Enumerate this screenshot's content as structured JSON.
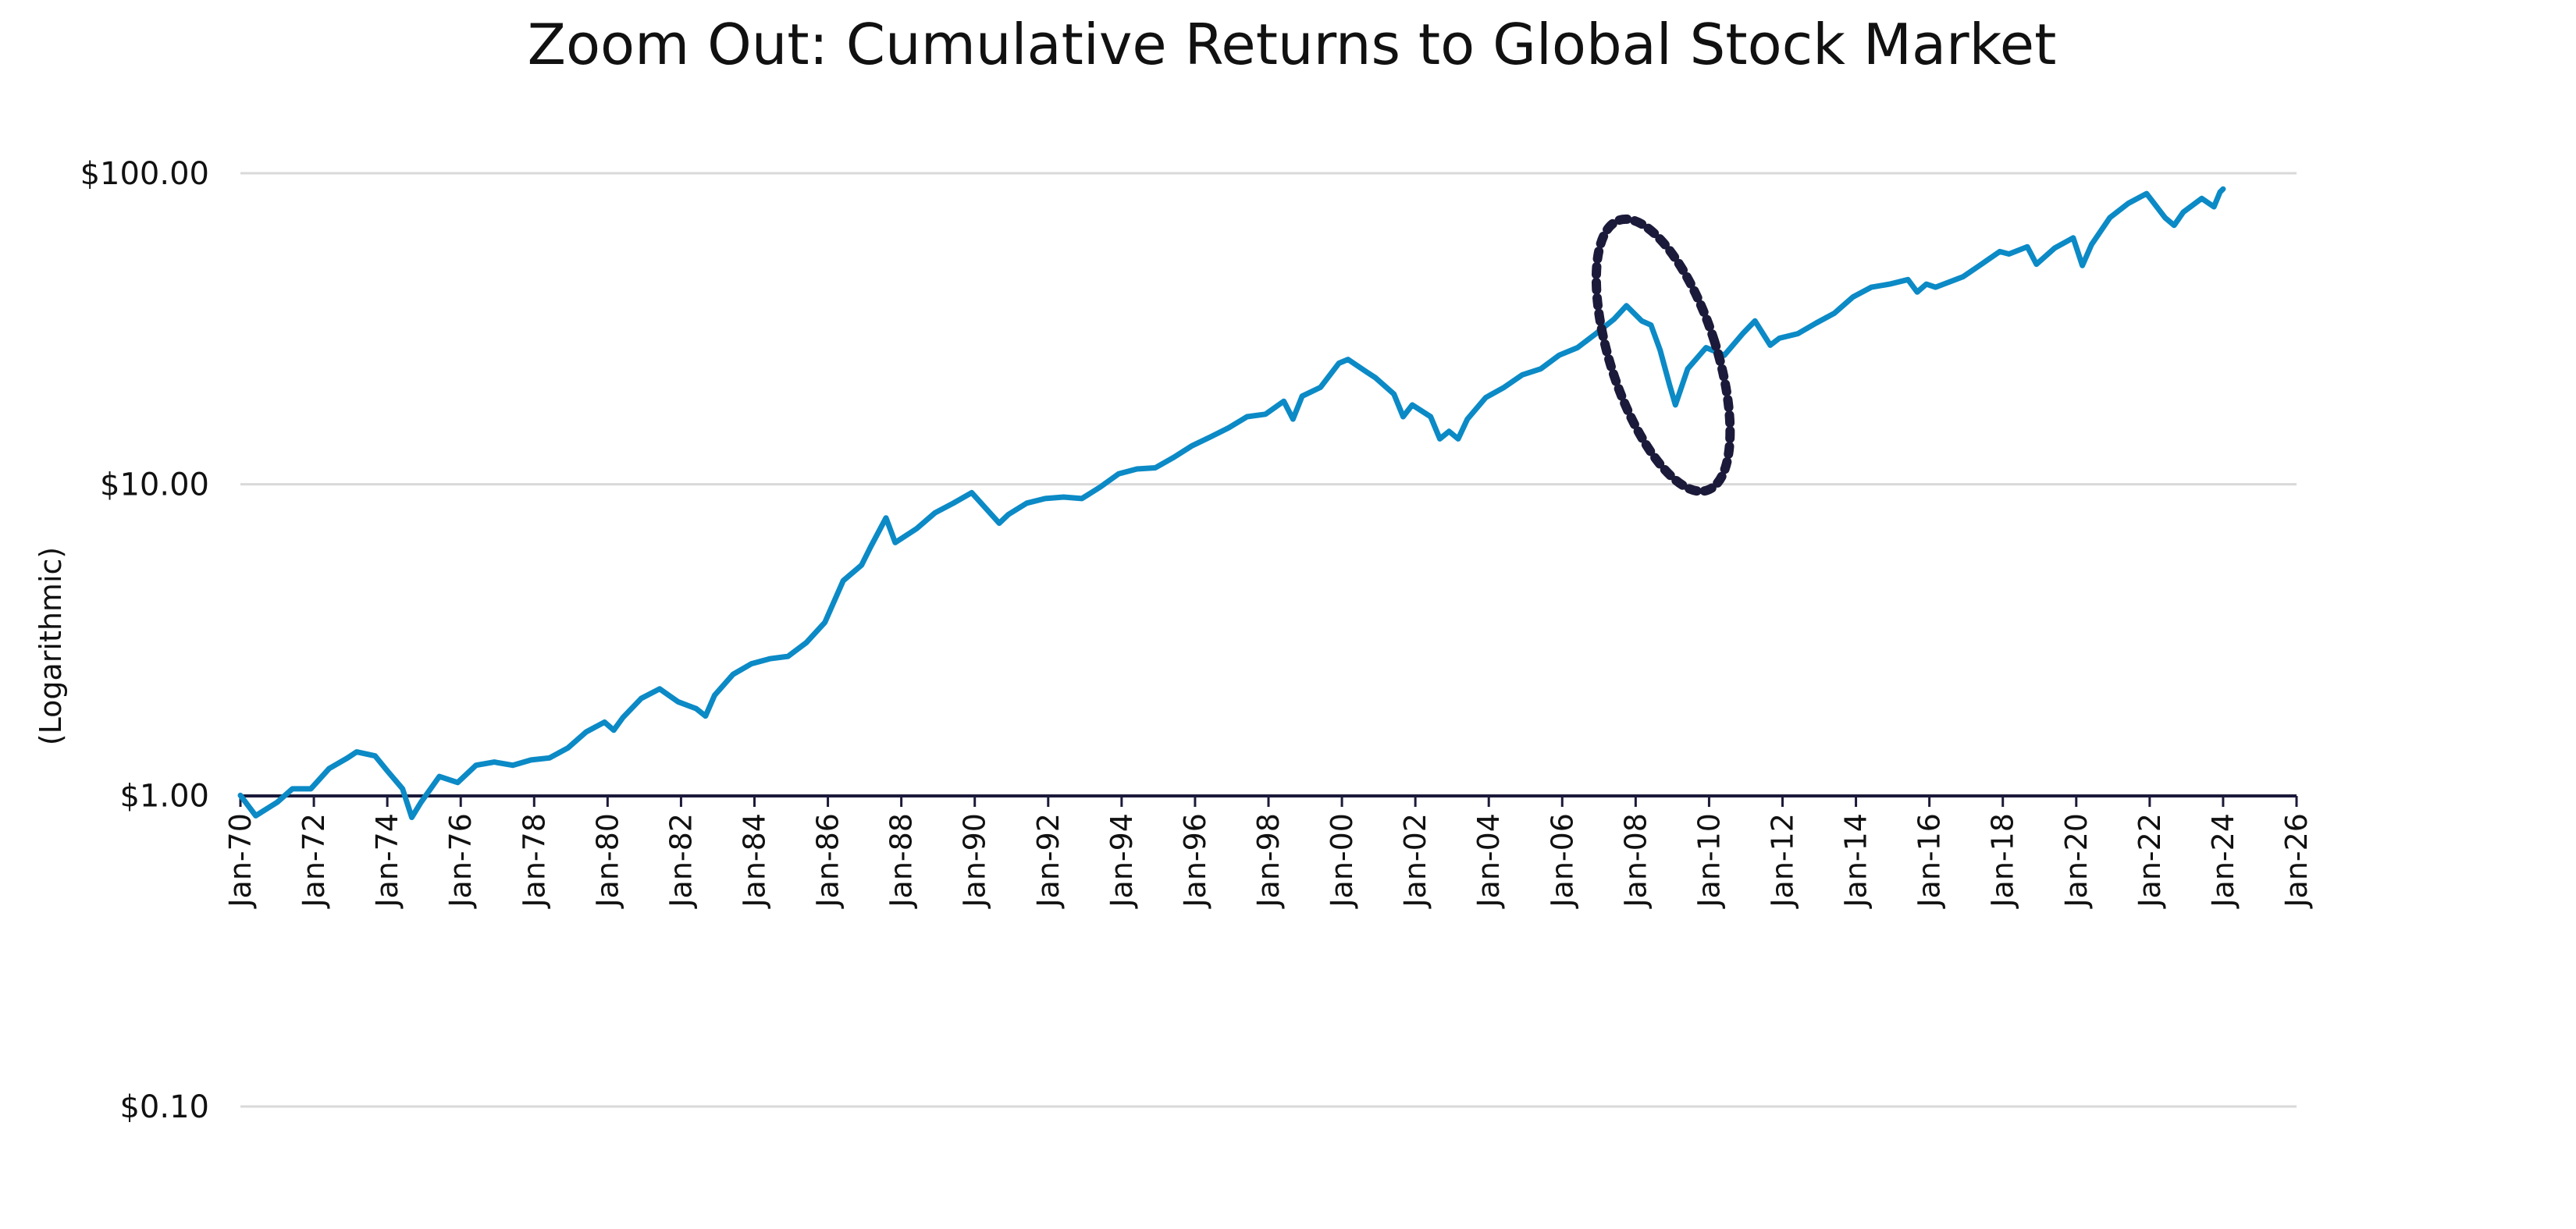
{
  "chart_data": {
    "type": "line",
    "title": "Zoom Out: Cumulative Returns to Global Stock Market",
    "ylabel": "(Logarithmic)",
    "xlabel": "",
    "y_scale": "log",
    "ylim": [
      0.1,
      100
    ],
    "xlim": [
      "1970-01",
      "2026-01"
    ],
    "y_ticks": [
      {
        "value": 100,
        "label": "$100.00"
      },
      {
        "value": 10,
        "label": "$10.00"
      },
      {
        "value": 1,
        "label": "$1.00"
      },
      {
        "value": 0.1,
        "label": "$0.10"
      }
    ],
    "x_ticks": [
      {
        "value": "1970-01",
        "label": "Jan-70"
      },
      {
        "value": "1972-01",
        "label": "Jan-72"
      },
      {
        "value": "1974-01",
        "label": "Jan-74"
      },
      {
        "value": "1976-01",
        "label": "Jan-76"
      },
      {
        "value": "1978-01",
        "label": "Jan-78"
      },
      {
        "value": "1980-01",
        "label": "Jan-80"
      },
      {
        "value": "1982-01",
        "label": "Jan-82"
      },
      {
        "value": "1984-01",
        "label": "Jan-84"
      },
      {
        "value": "1986-01",
        "label": "Jan-86"
      },
      {
        "value": "1988-01",
        "label": "Jan-88"
      },
      {
        "value": "1990-01",
        "label": "Jan-90"
      },
      {
        "value": "1992-01",
        "label": "Jan-92"
      },
      {
        "value": "1994-01",
        "label": "Jan-94"
      },
      {
        "value": "1996-01",
        "label": "Jan-96"
      },
      {
        "value": "1998-01",
        "label": "Jan-98"
      },
      {
        "value": "2000-01",
        "label": "Jan-00"
      },
      {
        "value": "2002-01",
        "label": "Jan-02"
      },
      {
        "value": "2004-01",
        "label": "Jan-04"
      },
      {
        "value": "2006-01",
        "label": "Jan-06"
      },
      {
        "value": "2008-01",
        "label": "Jan-08"
      },
      {
        "value": "2010-01",
        "label": "Jan-10"
      },
      {
        "value": "2012-01",
        "label": "Jan-12"
      },
      {
        "value": "2014-01",
        "label": "Jan-14"
      },
      {
        "value": "2016-01",
        "label": "Jan-16"
      },
      {
        "value": "2018-01",
        "label": "Jan-18"
      },
      {
        "value": "2020-01",
        "label": "Jan-20"
      },
      {
        "value": "2022-01",
        "label": "Jan-22"
      },
      {
        "value": "2024-01",
        "label": "Jan-24"
      },
      {
        "value": "2026-01",
        "label": "Jan-26"
      }
    ],
    "grid": true,
    "legend": "none",
    "series": [
      {
        "color": "#0b8ac6",
        "points": [
          [
            "1970-01",
            1.0
          ],
          [
            "1970-06",
            0.86
          ],
          [
            "1971-01",
            0.95
          ],
          [
            "1971-06",
            1.05
          ],
          [
            "1971-12",
            1.05
          ],
          [
            "1972-06",
            1.22
          ],
          [
            "1972-12",
            1.32
          ],
          [
            "1973-03",
            1.38
          ],
          [
            "1973-09",
            1.34
          ],
          [
            "1974-01",
            1.2
          ],
          [
            "1974-06",
            1.05
          ],
          [
            "1974-09",
            0.85
          ],
          [
            "1974-12",
            0.95
          ],
          [
            "1975-06",
            1.15
          ],
          [
            "1975-12",
            1.1
          ],
          [
            "1976-06",
            1.25
          ],
          [
            "1976-12",
            1.28
          ],
          [
            "1977-06",
            1.25
          ],
          [
            "1977-12",
            1.3
          ],
          [
            "1978-06",
            1.32
          ],
          [
            "1978-12",
            1.42
          ],
          [
            "1979-06",
            1.6
          ],
          [
            "1979-12",
            1.72
          ],
          [
            "1980-03",
            1.62
          ],
          [
            "1980-06",
            1.78
          ],
          [
            "1980-12",
            2.05
          ],
          [
            "1981-06",
            2.2
          ],
          [
            "1981-12",
            2.0
          ],
          [
            "1982-06",
            1.9
          ],
          [
            "1982-09",
            1.8
          ],
          [
            "1982-12",
            2.1
          ],
          [
            "1983-06",
            2.45
          ],
          [
            "1983-12",
            2.65
          ],
          [
            "1984-06",
            2.75
          ],
          [
            "1984-12",
            2.8
          ],
          [
            "1985-06",
            3.1
          ],
          [
            "1985-12",
            3.6
          ],
          [
            "1986-06",
            4.9
          ],
          [
            "1986-12",
            5.5
          ],
          [
            "1987-03",
            6.3
          ],
          [
            "1987-08",
            7.8
          ],
          [
            "1987-11",
            6.5
          ],
          [
            "1988-06",
            7.2
          ],
          [
            "1988-12",
            8.1
          ],
          [
            "1989-06",
            8.7
          ],
          [
            "1989-12",
            9.4
          ],
          [
            "1990-09",
            7.5
          ],
          [
            "1990-12",
            8.0
          ],
          [
            "1991-06",
            8.7
          ],
          [
            "1991-12",
            9.0
          ],
          [
            "1992-06",
            9.1
          ],
          [
            "1992-12",
            9.0
          ],
          [
            "1993-06",
            9.8
          ],
          [
            "1993-12",
            10.8
          ],
          [
            "1994-06",
            11.2
          ],
          [
            "1994-12",
            11.3
          ],
          [
            "1995-06",
            12.2
          ],
          [
            "1995-12",
            13.3
          ],
          [
            "1996-06",
            14.2
          ],
          [
            "1996-12",
            15.2
          ],
          [
            "1997-06",
            16.5
          ],
          [
            "1997-12",
            16.8
          ],
          [
            "1998-06",
            18.5
          ],
          [
            "1998-09",
            16.2
          ],
          [
            "1998-12",
            19.2
          ],
          [
            "1999-06",
            20.5
          ],
          [
            "1999-12",
            24.5
          ],
          [
            "2000-03",
            25.2
          ],
          [
            "2000-09",
            23.0
          ],
          [
            "2000-12",
            22.0
          ],
          [
            "2001-06",
            19.5
          ],
          [
            "2001-09",
            16.5
          ],
          [
            "2001-12",
            18.0
          ],
          [
            "2002-06",
            16.5
          ],
          [
            "2002-09",
            14.0
          ],
          [
            "2002-12",
            14.8
          ],
          [
            "2003-03",
            14.0
          ],
          [
            "2003-06",
            16.2
          ],
          [
            "2003-12",
            19.0
          ],
          [
            "2004-06",
            20.5
          ],
          [
            "2004-12",
            22.5
          ],
          [
            "2005-06",
            23.5
          ],
          [
            "2005-12",
            26.0
          ],
          [
            "2006-06",
            27.5
          ],
          [
            "2006-12",
            30.5
          ],
          [
            "2007-06",
            34.0
          ],
          [
            "2007-10",
            37.5
          ],
          [
            "2008-03",
            33.5
          ],
          [
            "2008-06",
            32.5
          ],
          [
            "2008-09",
            27.0
          ],
          [
            "2008-12",
            21.0
          ],
          [
            "2009-02",
            18.0
          ],
          [
            "2009-06",
            23.5
          ],
          [
            "2009-12",
            27.5
          ],
          [
            "2010-06",
            26.0
          ],
          [
            "2010-12",
            30.5
          ],
          [
            "2011-04",
            33.5
          ],
          [
            "2011-09",
            28.0
          ],
          [
            "2011-12",
            29.5
          ],
          [
            "2012-06",
            30.5
          ],
          [
            "2012-12",
            33.0
          ],
          [
            "2013-06",
            35.5
          ],
          [
            "2013-12",
            40.0
          ],
          [
            "2014-06",
            43.0
          ],
          [
            "2014-12",
            44.0
          ],
          [
            "2015-06",
            45.5
          ],
          [
            "2015-09",
            41.5
          ],
          [
            "2015-12",
            44.0
          ],
          [
            "2016-03",
            43.0
          ],
          [
            "2016-12",
            46.5
          ],
          [
            "2017-06",
            51.0
          ],
          [
            "2017-12",
            56.0
          ],
          [
            "2018-03",
            55.0
          ],
          [
            "2018-09",
            58.0
          ],
          [
            "2018-12",
            51.0
          ],
          [
            "2019-06",
            57.5
          ],
          [
            "2019-12",
            62.0
          ],
          [
            "2020-03",
            50.5
          ],
          [
            "2020-06",
            59.0
          ],
          [
            "2020-12",
            72.0
          ],
          [
            "2021-06",
            80.0
          ],
          [
            "2021-12",
            86.0
          ],
          [
            "2022-06",
            72.0
          ],
          [
            "2022-09",
            68.0
          ],
          [
            "2022-12",
            75.0
          ],
          [
            "2023-06",
            83.0
          ],
          [
            "2023-10",
            78.0
          ],
          [
            "2023-12",
            87.0
          ],
          [
            "2024-01",
            89.0
          ]
        ]
      }
    ],
    "annotations": [
      {
        "type": "dotted-ellipse",
        "x_center": "2008-10",
        "y_center": 26.0,
        "color": "#1b1a3a"
      }
    ]
  }
}
